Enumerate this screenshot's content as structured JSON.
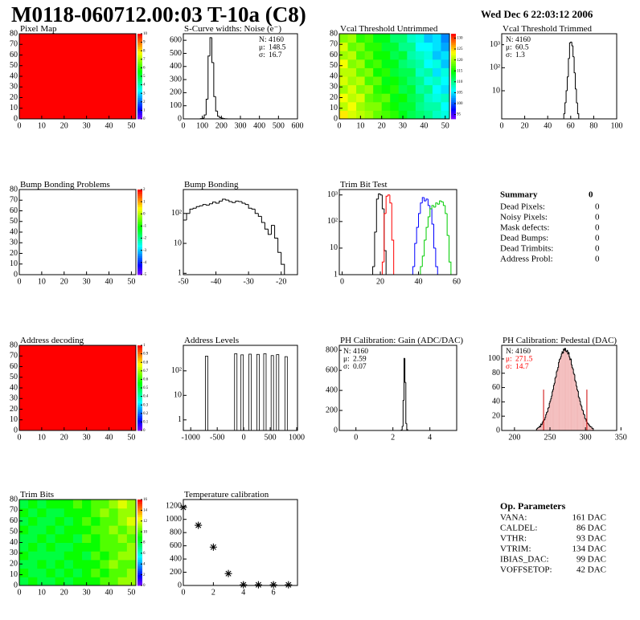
{
  "header": {
    "title": "M0118-060712.00:03 T-10a (C8)",
    "date": "Wed Dec  6 22:03:12 2006"
  },
  "chart_data": [
    {
      "type": "heatmap",
      "title": "Pixel Map",
      "xlim": [
        0,
        52
      ],
      "xticks": [
        0,
        10,
        20,
        30,
        40,
        50
      ],
      "ylim": [
        0,
        80
      ],
      "yticks": [
        0,
        10,
        20,
        30,
        40,
        50,
        60,
        70,
        80
      ],
      "value": 10,
      "zlim": [
        0,
        10
      ],
      "zticks": [
        0,
        1,
        2,
        3,
        4,
        5,
        6,
        7,
        8,
        9,
        10
      ]
    },
    {
      "type": "histogram",
      "title": "S-Curve widths: Noise (e⁻)",
      "xlim": [
        0,
        600
      ],
      "xticks": [
        0,
        100,
        200,
        300,
        400,
        500,
        600
      ],
      "ylim": [
        0,
        650
      ],
      "yticks": [
        0,
        100,
        200,
        300,
        400,
        500,
        600
      ],
      "color": "#000000",
      "bins": [
        90,
        100,
        110,
        120,
        130,
        140,
        150,
        160,
        170,
        180,
        190,
        200,
        210,
        220,
        230
      ],
      "values": [
        2,
        5,
        30,
        150,
        480,
        620,
        430,
        170,
        60,
        20,
        10,
        5,
        2,
        1
      ],
      "stats_corner": "top-right",
      "stats": [
        {
          "label": "N:",
          "value": 4160
        },
        {
          "label": "μ:",
          "value": 148.5
        },
        {
          "label": "σ:",
          "value": 16.7
        }
      ]
    },
    {
      "type": "heatmap",
      "title": "Vcal Threshold Untrimmed",
      "xlim": [
        0,
        52
      ],
      "xticks": [
        0,
        10,
        20,
        30,
        40,
        50
      ],
      "ylim": [
        0,
        80
      ],
      "yticks": [
        0,
        10,
        20,
        30,
        40,
        50,
        60,
        70,
        80
      ],
      "zlim": [
        93,
        132
      ],
      "zticks": [
        95,
        100,
        105,
        110,
        115,
        120,
        125,
        130
      ],
      "z": [
        [
          124,
          122,
          121,
          120,
          118,
          117,
          116,
          114,
          112,
          111,
          110,
          108,
          107
        ],
        [
          121,
          123,
          120,
          119,
          119,
          116,
          115,
          113,
          113,
          110,
          109,
          109,
          106
        ],
        [
          123,
          121,
          122,
          118,
          117,
          118,
          114,
          115,
          112,
          111,
          108,
          107,
          108
        ],
        [
          120,
          122,
          119,
          120,
          116,
          115,
          116,
          112,
          113,
          109,
          110,
          106,
          105
        ],
        [
          122,
          120,
          121,
          117,
          118,
          114,
          115,
          113,
          111,
          110,
          107,
          108,
          106
        ],
        [
          121,
          121,
          118,
          119,
          115,
          116,
          113,
          112,
          112,
          108,
          109,
          105,
          107
        ],
        [
          123,
          119,
          120,
          116,
          117,
          114,
          114,
          111,
          110,
          109,
          106,
          107,
          104
        ],
        [
          120,
          121,
          117,
          118,
          115,
          115,
          112,
          113,
          109,
          108,
          107,
          104,
          105
        ],
        [
          122,
          118,
          119,
          116,
          116,
          113,
          113,
          110,
          110,
          106,
          106,
          105,
          103
        ],
        [
          119,
          120,
          116,
          117,
          114,
          114,
          111,
          111,
          108,
          107,
          104,
          105,
          102
        ]
      ]
    },
    {
      "type": "histogram",
      "title": "Vcal Threshold Trimmed",
      "log": true,
      "xlim": [
        0,
        100
      ],
      "xticks": [
        0,
        20,
        40,
        60,
        80,
        100
      ],
      "ylim": [
        0.6,
        3000
      ],
      "yticks": [
        10,
        {
          "value": 100,
          "label": "10²"
        },
        {
          "value": 1000,
          "label": "10³"
        }
      ],
      "color": "#000000",
      "bins": [
        54,
        55,
        56,
        57,
        58,
        59,
        60,
        61,
        62,
        63,
        64,
        65,
        66,
        67
      ],
      "values": [
        1,
        3,
        10,
        40,
        250,
        1200,
        1300,
        900,
        300,
        60,
        12,
        3,
        1
      ],
      "stats_corner": "top-left",
      "stats": [
        {
          "label": "N:",
          "value": 4160
        },
        {
          "label": "μ:",
          "value": 60.5
        },
        {
          "label": "σ:",
          "value": 1.3
        }
      ]
    },
    {
      "type": "heatmap",
      "title": "Bump Bonding Problems",
      "xlim": [
        0,
        52
      ],
      "xticks": [
        0,
        10,
        20,
        30,
        40,
        50
      ],
      "ylim": [
        0,
        80
      ],
      "yticks": [
        0,
        10,
        20,
        30,
        40,
        50,
        60,
        70,
        80
      ],
      "zlim": [
        -5,
        2
      ],
      "zticks": [
        -5,
        -4,
        -3,
        -2,
        -1,
        0,
        1,
        2
      ]
    },
    {
      "type": "histogram",
      "title": "Bump Bonding",
      "log": true,
      "xlim": [
        -50,
        -15
      ],
      "xticks": [
        -50,
        -40,
        -30,
        -20
      ],
      "ylim": [
        0.9,
        630
      ],
      "yticks": [
        1,
        10,
        {
          "value": 100,
          "label": "10²"
        }
      ],
      "color": "#000000",
      "bins": [
        -50,
        -49,
        -48,
        -47,
        -46,
        -45,
        -44,
        -43,
        -42,
        -41,
        -40,
        -39,
        -38,
        -37,
        -36,
        -35,
        -34,
        -33,
        -32,
        -31,
        -30,
        -29,
        -28,
        -27,
        -26,
        -25,
        -24,
        -23,
        -22,
        -21,
        -20,
        -19
      ],
      "values": [
        60,
        100,
        140,
        150,
        170,
        180,
        200,
        190,
        210,
        240,
        220,
        260,
        300,
        280,
        250,
        230,
        260,
        250,
        220,
        200,
        150,
        140,
        100,
        80,
        50,
        30,
        20,
        40,
        15,
        5,
        2
      ]
    },
    {
      "type": "histogram",
      "title": "Trim Bit Test",
      "log": true,
      "xlim": [
        -1.5,
        60
      ],
      "xticks": [
        0,
        20,
        40,
        60
      ],
      "ylim": [
        1,
        1600
      ],
      "yticks": [
        1,
        10,
        {
          "value": 100,
          "label": "10²"
        },
        {
          "value": 1000,
          "label": "10³"
        }
      ],
      "series": [
        {
          "color": "#000000",
          "bins": [
            16,
            17,
            18,
            19,
            20,
            21,
            22,
            23
          ],
          "values": [
            2,
            40,
            700,
            1100,
            1000,
            300,
            8
          ]
        },
        {
          "color": "#ff0000",
          "bins": [
            21,
            22,
            23,
            24,
            25,
            26,
            27
          ],
          "values": [
            3,
            200,
            900,
            1000,
            500,
            20
          ]
        },
        {
          "color": "#0000ff",
          "bins": [
            37,
            38,
            39,
            40,
            41,
            42,
            43,
            44,
            45,
            46,
            47,
            48,
            49,
            50
          ],
          "values": [
            2,
            15,
            60,
            200,
            500,
            800,
            600,
            700,
            400,
            300,
            80,
            10,
            2
          ]
        },
        {
          "color": "#00cc00",
          "bins": [
            41,
            42,
            43,
            44,
            45,
            46,
            47,
            48,
            49,
            50,
            51,
            52,
            53,
            54,
            55,
            56,
            57
          ],
          "values": [
            2,
            5,
            20,
            60,
            150,
            300,
            400,
            350,
            500,
            450,
            600,
            550,
            400,
            200,
            30,
            3
          ]
        }
      ]
    },
    {
      "type": "heatmap",
      "title": "Address decoding",
      "xlim": [
        0,
        52
      ],
      "xticks": [
        0,
        10,
        20,
        30,
        40,
        50
      ],
      "ylim": [
        0,
        80
      ],
      "yticks": [
        0,
        10,
        20,
        30,
        40,
        50,
        60,
        70,
        80
      ],
      "value": 1,
      "zlim": [
        0,
        1
      ],
      "zticks": [
        0,
        0.1,
        0.2,
        0.3,
        0.4,
        0.5,
        0.6,
        0.7,
        0.8,
        0.9,
        1
      ]
    },
    {
      "type": "bar",
      "title": "Address Levels",
      "log": true,
      "xlim": [
        -1140,
        1015
      ],
      "xticks": [
        -1000,
        -500,
        0,
        500,
        1000
      ],
      "ylim": [
        0.37,
        1100
      ],
      "yticks": [
        1,
        10,
        {
          "value": 100,
          "label": "10²"
        }
      ],
      "color": "#000000",
      "x": [
        -700,
        -150,
        -30,
        120,
        270,
        400,
        540,
        640,
        800
      ],
      "values": [
        400,
        500,
        450,
        480,
        470,
        500,
        420,
        460,
        380
      ]
    },
    {
      "type": "histogram",
      "title": "PH Calibration: Gain (ADC/DAC)",
      "xlim": [
        -0.9,
        5.45
      ],
      "xticks": [
        0,
        2,
        4
      ],
      "ylim": [
        0,
        850
      ],
      "yticks": [
        0,
        200,
        400,
        600,
        800
      ],
      "color": "#000000",
      "bins": [
        2.45,
        2.5,
        2.55,
        2.6,
        2.65,
        2.7,
        2.75,
        2.8
      ],
      "values": [
        5,
        40,
        300,
        720,
        480,
        70,
        8
      ],
      "stats_corner": "top-left",
      "stats": [
        {
          "label": "N:",
          "value": 4160
        },
        {
          "label": "μ:",
          "value": 2.59
        },
        {
          "label": "σ:",
          "value": 0.07
        }
      ]
    },
    {
      "type": "histogram",
      "title": "PH Calibration: Pedestal (DAC)",
      "xlim": [
        182,
        344
      ],
      "xticks": [
        200,
        250,
        300,
        350
      ],
      "ylim": [
        0,
        119
      ],
      "yticks": [
        0,
        20,
        40,
        60,
        80,
        100
      ],
      "color": "#000000",
      "fill_color": "#f2b8b8",
      "bins": [
        231,
        232,
        233,
        234,
        235,
        236,
        237,
        238,
        239,
        240,
        241,
        242,
        243,
        244,
        245,
        246,
        247,
        248,
        249,
        250,
        251,
        252,
        253,
        254,
        255,
        256,
        257,
        258,
        259,
        260,
        261,
        262,
        263,
        264,
        265,
        266,
        267,
        268,
        269,
        270,
        271,
        272,
        273,
        274,
        275,
        276,
        277,
        278,
        279,
        280,
        281,
        282,
        283,
        284,
        285,
        286,
        287,
        288,
        289,
        290,
        291,
        292,
        293,
        294,
        295,
        296,
        297,
        298,
        299,
        300,
        301,
        302,
        303,
        304,
        305,
        306,
        307,
        308,
        309,
        310,
        311
      ],
      "values": [
        2,
        3,
        4,
        4,
        6,
        5,
        9,
        8,
        11,
        13,
        14,
        15,
        18,
        22,
        25,
        26,
        31,
        32,
        38,
        41,
        44,
        48,
        54,
        57,
        63,
        66,
        73,
        75,
        82,
        84,
        88,
        95,
        99,
        100,
        103,
        107,
        110,
        108,
        114,
        112,
        115,
        111,
        110,
        112,
        107,
        109,
        103,
        99,
        100,
        92,
        88,
        86,
        80,
        78,
        70,
        68,
        62,
        57,
        55,
        47,
        45,
        41,
        36,
        34,
        29,
        28,
        23,
        22,
        17,
        16,
        13,
        11,
        10,
        9,
        7,
        6,
        5,
        5,
        3,
        3
      ],
      "cuts": [
        241,
        302
      ],
      "cut_color": "#cc0000",
      "stats_corner": "top-left",
      "stats": [
        {
          "label": "N:",
          "value": 4160
        },
        {
          "label": "μ:",
          "value": 271.5,
          "color": "#ff0000"
        },
        {
          "label": "σ:",
          "value": 14.7,
          "color": "#ff0000"
        }
      ]
    },
    {
      "type": "heatmap",
      "title": "Trim Bits",
      "xlim": [
        0,
        52
      ],
      "xticks": [
        0,
        10,
        20,
        30,
        40,
        50
      ],
      "ylim": [
        0,
        80
      ],
      "yticks": [
        0,
        10,
        20,
        30,
        40,
        50,
        60,
        70,
        80
      ],
      "zlim": [
        0,
        16
      ],
      "zticks": [
        0,
        2,
        4,
        6,
        8,
        10,
        12,
        14,
        16
      ],
      "z": [
        [
          8,
          9,
          8,
          8,
          9,
          8,
          9,
          9,
          9,
          10,
          10,
          11,
          11
        ],
        [
          9,
          8,
          8,
          9,
          8,
          9,
          8,
          9,
          10,
          9,
          10,
          10,
          11
        ],
        [
          8,
          8,
          9,
          8,
          9,
          8,
          9,
          9,
          9,
          10,
          11,
          10,
          10
        ],
        [
          9,
          8,
          8,
          8,
          8,
          9,
          9,
          8,
          10,
          9,
          10,
          11,
          11
        ],
        [
          8,
          9,
          8,
          9,
          8,
          8,
          9,
          9,
          9,
          10,
          10,
          10,
          11
        ],
        [
          8,
          8,
          9,
          8,
          9,
          9,
          8,
          10,
          9,
          10,
          10,
          11,
          10
        ],
        [
          9,
          8,
          8,
          9,
          8,
          9,
          9,
          9,
          10,
          10,
          11,
          10,
          11
        ],
        [
          8,
          9,
          8,
          8,
          9,
          8,
          9,
          10,
          9,
          10,
          10,
          11,
          12
        ],
        [
          9,
          8,
          9,
          8,
          8,
          9,
          9,
          9,
          10,
          11,
          10,
          11,
          11
        ],
        [
          8,
          9,
          8,
          9,
          9,
          9,
          10,
          9,
          10,
          10,
          11,
          12,
          11
        ]
      ]
    },
    {
      "type": "scatter",
      "title": "Temperature calibration",
      "xlim": [
        0,
        7.6
      ],
      "xticks": [
        0,
        2,
        4,
        6
      ],
      "ylim": [
        0,
        1300
      ],
      "yticks": [
        0,
        200,
        400,
        600,
        800,
        1000,
        1200
      ],
      "color": "#000000",
      "x": [
        0,
        1,
        2,
        3,
        4,
        5,
        6,
        7
      ],
      "values": [
        1180,
        910,
        580,
        180,
        10,
        10,
        10,
        10
      ]
    }
  ],
  "summary": {
    "title": "Summary",
    "total": 0,
    "rows": [
      {
        "label": "Dead Pixels:",
        "value": 0
      },
      {
        "label": "Noisy Pixels:",
        "value": 0
      },
      {
        "label": "Mask defects:",
        "value": 0
      },
      {
        "label": "Dead Bumps:",
        "value": 0
      },
      {
        "label": "Dead Trimbits:",
        "value": 0
      },
      {
        "label": "Address Probl:",
        "value": 0
      }
    ]
  },
  "parameters": {
    "title": "Op. Parameters",
    "rows": [
      {
        "label": "VANA:",
        "value": "161 DAC"
      },
      {
        "label": "CALDEL:",
        "value": "86 DAC"
      },
      {
        "label": "VTHR:",
        "value": "93 DAC"
      },
      {
        "label": "VTRIM:",
        "value": "134 DAC"
      },
      {
        "label": "IBIAS_DAC:",
        "value": "99 DAC"
      },
      {
        "label": "VOFFSETOP:",
        "value": "42 DAC"
      }
    ]
  }
}
